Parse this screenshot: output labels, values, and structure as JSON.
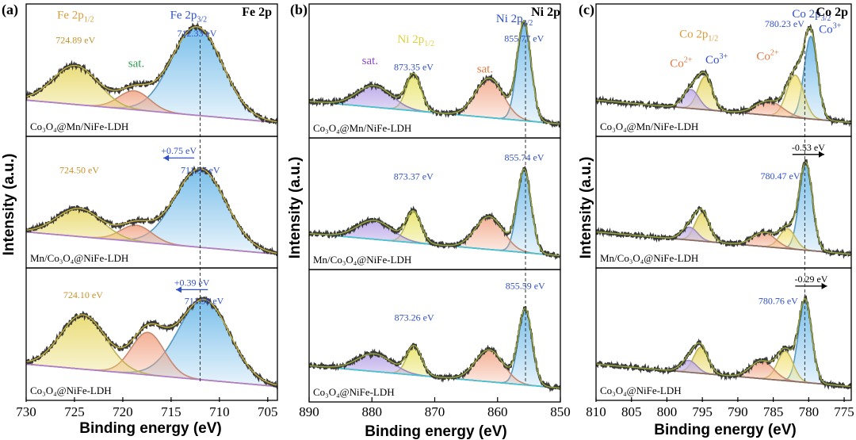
{
  "chart_data": [
    {
      "type": "line",
      "panel_label": "(a)",
      "corner_title": "Fe 2p",
      "xlabel": "Binding energy (eV)",
      "ylabel": "Intensity (a.u.)",
      "xlim": [
        730,
        704
      ],
      "xticks": [
        730,
        725,
        720,
        715,
        710,
        705
      ],
      "tick_labels": [
        "730",
        "725",
        "720",
        "715",
        "710",
        "705"
      ],
      "dashed_ref_x": 712.0,
      "baseline_color": "#b07ad0",
      "subplots": [
        {
          "sample": "Co3O4@Mn/NiFe-LDH",
          "peaks": [
            {
              "center": 712.33,
              "fwhm": 6.2,
              "height": 0.75,
              "color": "#6cb8e8"
            },
            {
              "center": 718.8,
              "fwhm": 3.8,
              "height": 0.16,
              "color": "#f2a88a"
            },
            {
              "center": 724.89,
              "fwhm": 5.5,
              "height": 0.33,
              "color": "#e8d96a"
            }
          ],
          "labels": [
            {
              "text": "724.89 eV",
              "x": 724.89,
              "y": 0.72,
              "color": "#c8922a"
            },
            {
              "text": "712.33 eV",
              "x": 712.33,
              "y": 0.78,
              "color": "#3050c8"
            }
          ],
          "spectral": [
            {
              "text": "Fe 2p",
              "sub": "1/2",
              "x": 724.89,
              "y": 0.93,
              "color": "#d89c3a"
            },
            {
              "text": "sat.",
              "sub": "",
              "x": 718.6,
              "y": 0.52,
              "color": "#2e9a52"
            },
            {
              "text": "Fe 2p",
              "sub": "3/2",
              "x": 713.2,
              "y": 0.93,
              "color": "#3050c8"
            }
          ],
          "shift": null
        },
        {
          "sample": "Mn/Co3O4@NiFe-LDH",
          "peaks": [
            {
              "center": 711.97,
              "fwhm": 6.2,
              "height": 0.67,
              "color": "#6cb8e8"
            },
            {
              "center": 718.6,
              "fwhm": 3.8,
              "height": 0.14,
              "color": "#f2a88a"
            },
            {
              "center": 724.5,
              "fwhm": 5.5,
              "height": 0.24,
              "color": "#e8d96a"
            }
          ],
          "labels": [
            {
              "text": "724.50 eV",
              "x": 724.5,
              "y": 0.74,
              "color": "#c8922a"
            },
            {
              "text": "711.97 eV",
              "x": 711.97,
              "y": 0.74,
              "color": "#3050c8"
            }
          ],
          "spectral": [],
          "shift": {
            "text": "+0.75 eV",
            "from": 712.6,
            "to": 715.8,
            "y": 0.87,
            "dir": "left",
            "color": "#3050c8"
          }
        },
        {
          "sample": "Co3O4@NiFe-LDH",
          "peaks": [
            {
              "center": 711.58,
              "fwhm": 6.2,
              "height": 0.68,
              "color": "#6cb8e8"
            },
            {
              "center": 717.4,
              "fwhm": 4.0,
              "height": 0.36,
              "color": "#f2a88a"
            },
            {
              "center": 724.1,
              "fwhm": 5.5,
              "height": 0.46,
              "color": "#e8d96a"
            }
          ],
          "labels": [
            {
              "text": "724.10 eV",
              "x": 724.1,
              "y": 0.8,
              "color": "#c8922a"
            },
            {
              "text": "711.58 eV",
              "x": 711.58,
              "y": 0.75,
              "color": "#3050c8"
            }
          ],
          "spectral": [],
          "shift": {
            "text": "+0.39 eV",
            "from": 711.2,
            "to": 714.5,
            "y": 0.87,
            "dir": "left",
            "color": "#3050c8"
          }
        }
      ]
    },
    {
      "type": "line",
      "panel_label": "(b)",
      "corner_title": "Ni 2p",
      "xlabel": "Binding energy (eV)",
      "ylabel": "Intensity (a.u.)",
      "xlim": [
        890,
        850
      ],
      "xticks": [
        890,
        880,
        870,
        860,
        850
      ],
      "tick_labels": [
        "890",
        "880",
        "870",
        "860",
        "850"
      ],
      "dashed_ref_x": 855.55,
      "baseline_color": "#3ec6d8",
      "subplots": [
        {
          "sample": "Co3O4@Mn/NiFe-LDH",
          "peaks": [
            {
              "center": 855.77,
              "fwhm": 2.6,
              "height": 0.82,
              "color": "#6cb8e8"
            },
            {
              "center": 861.3,
              "fwhm": 5.2,
              "height": 0.33,
              "color": "#f2a88a"
            },
            {
              "center": 873.35,
              "fwhm": 2.8,
              "height": 0.3,
              "color": "#e8e46a"
            },
            {
              "center": 879.6,
              "fwhm": 6.5,
              "height": 0.18,
              "color": "#b9a6e8"
            }
          ],
          "labels": [
            {
              "text": "855.77 eV",
              "x": 855.77,
              "y": 0.74,
              "color": "#3050c8"
            },
            {
              "text": "873.35 eV",
              "x": 873.35,
              "y": 0.5,
              "color": "#3050c8"
            }
          ],
          "spectral": [
            {
              "text": "Ni 2p",
              "sub": "3/2",
              "x": 857.3,
              "y": 0.9,
              "color": "#3050c8"
            },
            {
              "text": "Ni 2p",
              "sub": "1/2",
              "x": 873.0,
              "y": 0.73,
              "color": "#e0d23a"
            },
            {
              "text": "sat.",
              "sub": "",
              "x": 862.0,
              "y": 0.48,
              "color": "#e07a40"
            },
            {
              "text": "sat.",
              "sub": "",
              "x": 880.3,
              "y": 0.55,
              "color": "#8a4ad0"
            }
          ],
          "shift": null
        },
        {
          "sample": "Mn/Co3O4@NiFe-LDH",
          "peaks": [
            {
              "center": 855.74,
              "fwhm": 2.6,
              "height": 0.7,
              "color": "#6cb8e8"
            },
            {
              "center": 861.3,
              "fwhm": 5.2,
              "height": 0.28,
              "color": "#f2a88a"
            },
            {
              "center": 873.37,
              "fwhm": 2.8,
              "height": 0.26,
              "color": "#e8e46a"
            },
            {
              "center": 879.6,
              "fwhm": 6.5,
              "height": 0.16,
              "color": "#b9a6e8"
            }
          ],
          "labels": [
            {
              "text": "855.74 eV",
              "x": 855.74,
              "y": 0.86,
              "color": "#3050c8"
            },
            {
              "text": "873.37 eV",
              "x": 873.37,
              "y": 0.7,
              "color": "#3050c8"
            }
          ],
          "spectral": [],
          "shift": null
        },
        {
          "sample": "Co3O4@NiFe-LDH",
          "peaks": [
            {
              "center": 855.59,
              "fwhm": 2.6,
              "height": 0.64,
              "color": "#6cb8e8"
            },
            {
              "center": 861.3,
              "fwhm": 5.2,
              "height": 0.27,
              "color": "#f2a88a"
            },
            {
              "center": 873.26,
              "fwhm": 2.8,
              "height": 0.24,
              "color": "#e8e46a"
            },
            {
              "center": 879.6,
              "fwhm": 6.5,
              "height": 0.15,
              "color": "#b9a6e8"
            }
          ],
          "labels": [
            {
              "text": "855.59 eV",
              "x": 855.59,
              "y": 0.89,
              "color": "#3050c8"
            },
            {
              "text": "873.26 eV",
              "x": 873.26,
              "y": 0.62,
              "color": "#3050c8"
            }
          ],
          "spectral": [],
          "shift": null
        }
      ]
    },
    {
      "type": "line",
      "panel_label": "(c)",
      "corner_title": "Co 2p",
      "xlabel": "Binding energy (eV)",
      "ylabel": "Intensity (a.u.)",
      "xlim": [
        810,
        774
      ],
      "xticks": [
        810,
        805,
        800,
        795,
        790,
        785,
        780,
        775
      ],
      "tick_labels": [
        "810",
        "805",
        "800",
        "795",
        "790",
        "785",
        "780",
        "775"
      ],
      "dashed_ref_x": 780.55,
      "baseline_color": "#8a6a60",
      "subplots": [
        {
          "sample": "Co3O4@Mn/NiFe-LDH",
          "peaks": [
            {
              "center": 779.7,
              "fwhm": 2.2,
              "height": 0.7,
              "color": "#6cb8e8"
            },
            {
              "center": 781.9,
              "fwhm": 2.8,
              "height": 0.36,
              "color": "#f2e27a"
            },
            {
              "center": 785.6,
              "fwhm": 4.5,
              "height": 0.12,
              "color": "#f2a88a"
            },
            {
              "center": 794.6,
              "fwhm": 2.4,
              "height": 0.28,
              "color": "#e8d96a"
            },
            {
              "center": 796.6,
              "fwhm": 2.6,
              "height": 0.16,
              "color": "#c4b0e8"
            }
          ],
          "labels": [
            {
              "text": "780.23 eV",
              "x": 783.4,
              "y": 0.86,
              "color": "#3050c8"
            }
          ],
          "spectral": [
            {
              "text": "Co 2p",
              "sub": "3/2",
              "x": 779.6,
              "y": 0.94,
              "color": "#3050c8"
            },
            {
              "text": "Co 2p",
              "sub": "1/2",
              "x": 795.5,
              "y": 0.77,
              "color": "#d89c3a"
            },
            {
              "text": "Co",
              "sub": "",
              "sup": "2+",
              "x": 785.8,
              "y": 0.58,
              "color": "#e07a40"
            },
            {
              "text": "Co",
              "sub": "",
              "sup": "3+",
              "x": 777.0,
              "y": 0.81,
              "color": "#3050c8"
            },
            {
              "text": "Co",
              "sub": "",
              "sup": "2+",
              "x": 798.0,
              "y": 0.52,
              "color": "#e07a40"
            },
            {
              "text": "Co",
              "sub": "",
              "sup": "3+",
              "x": 793.0,
              "y": 0.55,
              "color": "#3050c8"
            }
          ],
          "shift": null
        },
        {
          "sample": "Mn/Co3O4@NiFe-LDH",
          "peaks": [
            {
              "center": 780.4,
              "fwhm": 2.2,
              "height": 0.74,
              "color": "#6cb8e8"
            },
            {
              "center": 783.0,
              "fwhm": 2.6,
              "height": 0.17,
              "color": "#f2e27a"
            },
            {
              "center": 786.3,
              "fwhm": 3.8,
              "height": 0.12,
              "color": "#f2a88a"
            },
            {
              "center": 795.0,
              "fwhm": 2.4,
              "height": 0.24,
              "color": "#e8d96a"
            },
            {
              "center": 796.8,
              "fwhm": 2.6,
              "height": 0.11,
              "color": "#c4b0e8"
            }
          ],
          "labels": [
            {
              "text": "780.47 eV",
              "x": 784.0,
              "y": 0.69,
              "color": "#3050c8"
            }
          ],
          "spectral": [],
          "shift": {
            "text": "-0.53 eV",
            "from": 782.3,
            "to": 777.8,
            "y": 0.9,
            "dir": "right",
            "color": "#000000"
          }
        },
        {
          "sample": "Co3O4@NiFe-LDH",
          "peaks": [
            {
              "center": 780.5,
              "fwhm": 2.2,
              "height": 0.7,
              "color": "#6cb8e8"
            },
            {
              "center": 783.3,
              "fwhm": 2.6,
              "height": 0.25,
              "color": "#f2e27a"
            },
            {
              "center": 786.6,
              "fwhm": 3.8,
              "height": 0.15,
              "color": "#f2a88a"
            },
            {
              "center": 795.2,
              "fwhm": 2.4,
              "height": 0.22,
              "color": "#e8d96a"
            },
            {
              "center": 796.9,
              "fwhm": 2.6,
              "height": 0.1,
              "color": "#c4b0e8"
            }
          ],
          "labels": [
            {
              "text": "780.76 eV",
              "x": 784.3,
              "y": 0.75,
              "color": "#3050c8"
            }
          ],
          "spectral": [],
          "shift": {
            "text": "-0.29 eV",
            "from": 781.9,
            "to": 777.4,
            "y": 0.9,
            "dir": "right",
            "color": "#000000"
          }
        }
      ]
    }
  ]
}
